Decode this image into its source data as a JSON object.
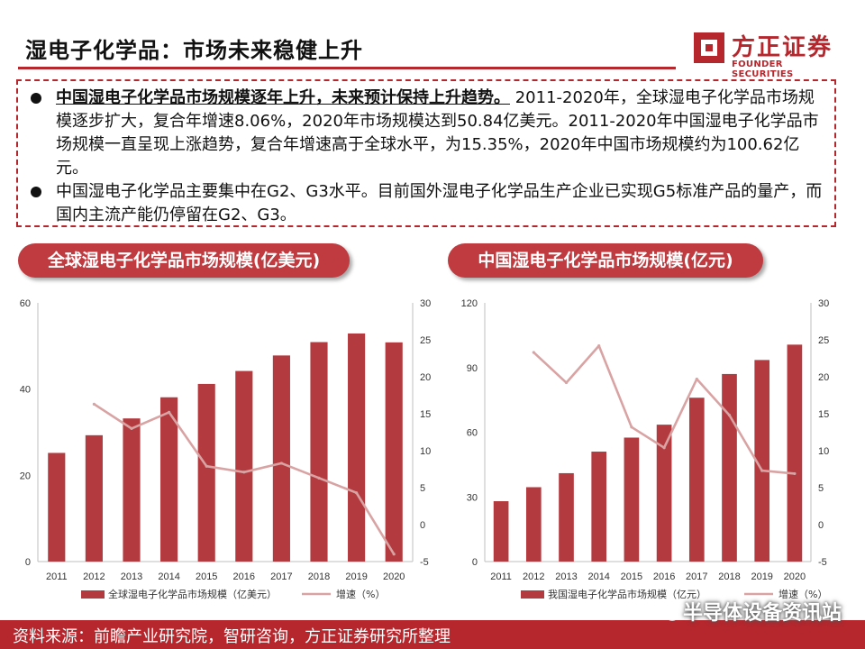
{
  "header": {
    "title": "湿电子化学品：市场未来稳健上升",
    "logo_cn": "方正证券",
    "logo_en": "FOUNDER SECURITIES"
  },
  "summary": {
    "bullet1_bold": "中国湿电子化学品市场规模逐年上升，未来预计保持上升趋势。",
    "bullet1_text": " 2011-2020年，全球湿电子化学品市场规模逐步扩大，复合年增速8.06%，2020年市场规模达到50.84亿美元。2011-2020年中国湿电子化学品市场规模一直呈现上涨趋势，复合年增速高于全球水平，为15.35%，2020年中国市场规模约为100.62亿元。",
    "bullet2_text": "中国湿电子化学品主要集中在G2、G3水平。目前国外湿电子化学品生产企业已实现G5标准产品的量产，而国内主流产能仍停留在G2、G3。"
  },
  "chart_titles": {
    "global": "全球湿电子化学品市场规模(亿美元)",
    "china": "中国湿电子化学品市场规模(亿元)"
  },
  "footer": {
    "source": "资料来源：前瞻产业研究院，智研咨询，方正证券研究所整理",
    "watermark": "半导体设备资讯站"
  },
  "colors": {
    "brand": "#b5272d",
    "bar": "#b33a3e",
    "line": "#d9a3a3"
  },
  "chart_data": [
    {
      "type": "bar",
      "categories": [
        "2011",
        "2012",
        "2013",
        "2014",
        "2015",
        "2016",
        "2017",
        "2018",
        "2019",
        "2020"
      ],
      "series": [
        {
          "name": "全球湿电子化学品市场规模（亿美元）",
          "type": "bar",
          "axis": "left",
          "values": [
            25.2,
            29.3,
            33.2,
            38.1,
            41.2,
            44.2,
            47.8,
            50.9,
            52.9,
            50.84
          ]
        },
        {
          "name": "增速（%）",
          "type": "line",
          "axis": "right",
          "values": [
            null,
            16.3,
            13.0,
            15.2,
            7.9,
            7.1,
            8.3,
            6.3,
            4.3,
            -4.0
          ]
        }
      ],
      "ylim_left": [
        0,
        60
      ],
      "yticks_left": [
        0,
        20,
        40,
        60
      ],
      "ylim_right": [
        -5,
        30
      ],
      "yticks_right": [
        -5,
        0,
        5,
        10,
        15,
        20,
        25,
        30
      ],
      "legend": "bottom",
      "grid": false
    },
    {
      "type": "bar",
      "categories": [
        "2011",
        "2012",
        "2013",
        "2014",
        "2015",
        "2016",
        "2017",
        "2018",
        "2019",
        "2020"
      ],
      "series": [
        {
          "name": "我国湿电子化学品市场规模（亿元）",
          "type": "bar",
          "axis": "left",
          "values": [
            28,
            34.5,
            41,
            51,
            57.5,
            63.5,
            76,
            87,
            93.5,
            100.62
          ]
        },
        {
          "name": "增速（%）",
          "type": "line",
          "axis": "right",
          "values": [
            null,
            23.3,
            19.2,
            24.2,
            13.2,
            10.4,
            19.7,
            14.8,
            7.3,
            6.9
          ]
        }
      ],
      "ylim_left": [
        0,
        120
      ],
      "yticks_left": [
        0,
        30,
        60,
        90,
        120
      ],
      "ylim_right": [
        -5,
        30
      ],
      "yticks_right": [
        -5,
        0,
        5,
        10,
        15,
        20,
        25,
        30
      ],
      "legend": "bottom",
      "grid": false
    }
  ]
}
